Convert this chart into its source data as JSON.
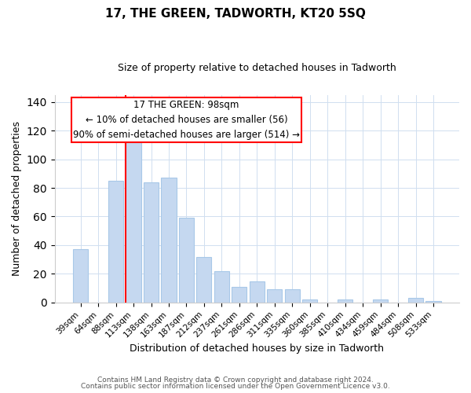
{
  "title": "17, THE GREEN, TADWORTH, KT20 5SQ",
  "subtitle": "Size of property relative to detached houses in Tadworth",
  "xlabel": "Distribution of detached houses by size in Tadworth",
  "ylabel": "Number of detached properties",
  "bar_labels": [
    "39sqm",
    "64sqm",
    "88sqm",
    "113sqm",
    "138sqm",
    "163sqm",
    "187sqm",
    "212sqm",
    "237sqm",
    "261sqm",
    "286sqm",
    "311sqm",
    "335sqm",
    "360sqm",
    "385sqm",
    "410sqm",
    "434sqm",
    "459sqm",
    "484sqm",
    "508sqm",
    "533sqm"
  ],
  "bar_heights": [
    37,
    0,
    85,
    117,
    84,
    87,
    59,
    32,
    22,
    11,
    15,
    9,
    9,
    2,
    0,
    2,
    0,
    2,
    0,
    3,
    1
  ],
  "bar_color": "#c5d8f0",
  "bar_edge_color": "#a8c8e8",
  "redline_bar_index": 3,
  "annotation_line1": "17 THE GREEN: 98sqm",
  "annotation_line2": "← 10% of detached houses are smaller (56)",
  "annotation_line3": "90% of semi-detached houses are larger (514) →",
  "ylim": [
    0,
    145
  ],
  "yticks": [
    0,
    20,
    40,
    60,
    80,
    100,
    120,
    140
  ],
  "footer_line1": "Contains HM Land Registry data © Crown copyright and database right 2024.",
  "footer_line2": "Contains public sector information licensed under the Open Government Licence v3.0.",
  "background_color": "#ffffff",
  "grid_color": "#d0dff0"
}
